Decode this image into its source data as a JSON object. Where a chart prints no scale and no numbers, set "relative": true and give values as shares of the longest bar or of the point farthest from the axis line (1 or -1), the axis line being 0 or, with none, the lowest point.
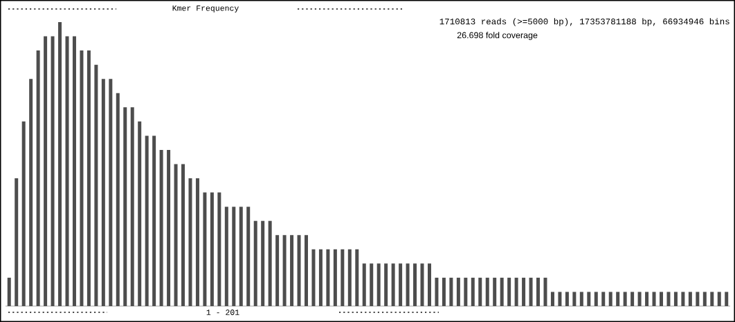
{
  "chart_data": {
    "type": "bar",
    "relative": true,
    "title": "Kmer Frequency",
    "xlabel": "1 - 201",
    "annotations": [
      "1710813 reads (>=5000 bp), 17353781188 bp, 66934946 bins",
      "26.698 fold coverage"
    ],
    "color": "#4d4d4d",
    "categories": [
      null,
      null,
      null,
      null,
      null,
      null,
      null,
      null,
      null,
      null,
      null,
      null,
      null,
      null,
      null,
      null,
      null,
      null,
      null,
      null,
      null,
      null,
      null,
      null,
      null,
      null,
      null,
      null,
      null,
      null,
      null,
      null,
      null,
      null,
      null,
      null,
      null,
      null,
      null,
      null,
      null,
      null,
      null,
      null,
      null,
      null,
      null,
      null,
      null,
      null,
      null,
      null,
      null,
      null,
      null,
      null,
      null,
      null,
      null,
      null,
      null,
      null,
      null,
      null,
      null,
      null,
      null,
      null,
      null,
      null,
      null,
      null,
      null,
      null,
      null,
      null,
      null,
      null,
      null,
      null,
      null,
      null,
      null,
      null,
      null,
      null,
      null,
      null,
      null,
      null,
      null,
      null,
      null,
      null,
      null,
      null,
      null,
      null,
      null,
      null
    ],
    "values": [
      0.1,
      0.45,
      0.65,
      0.8,
      0.9,
      0.95,
      0.95,
      1,
      0.95,
      0.95,
      0.9,
      0.9,
      0.85,
      0.8,
      0.8,
      0.75,
      0.7,
      0.7,
      0.65,
      0.6,
      0.6,
      0.55,
      0.55,
      0.5,
      0.5,
      0.45,
      0.45,
      0.4,
      0.4,
      0.4,
      0.35,
      0.35,
      0.35,
      0.35,
      0.3,
      0.3,
      0.3,
      0.25,
      0.25,
      0.25,
      0.25,
      0.25,
      0.2,
      0.2,
      0.2,
      0.2,
      0.2,
      0.2,
      0.2,
      0.15,
      0.15,
      0.15,
      0.15,
      0.15,
      0.15,
      0.15,
      0.15,
      0.15,
      0.15,
      0.1,
      0.1,
      0.1,
      0.1,
      0.1,
      0.1,
      0.1,
      0.1,
      0.1,
      0.1,
      0.1,
      0.1,
      0.1,
      0.1,
      0.1,
      0.1,
      0.05,
      0.05,
      0.05,
      0.05,
      0.05,
      0.05,
      0.05,
      0.05,
      0.05,
      0.05,
      0.05,
      0.05,
      0.05,
      0.05,
      0.05,
      0.05,
      0.05,
      0.05,
      0.05,
      0.05,
      0.05,
      0.05,
      0.05,
      0.05,
      0.05
    ]
  }
}
